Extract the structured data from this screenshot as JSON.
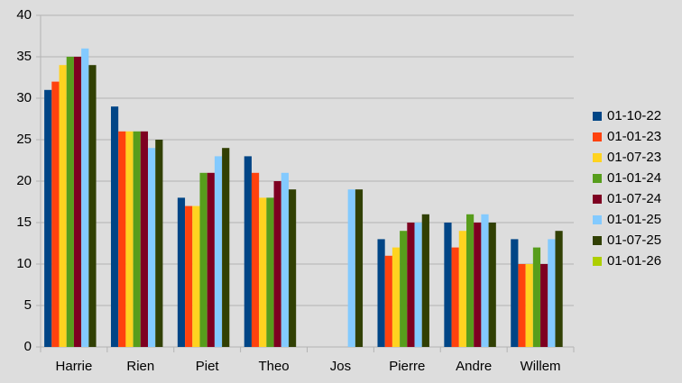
{
  "chart_data": {
    "type": "bar",
    "categories": [
      "Harrie",
      "Rien",
      "Piet",
      "Theo",
      "Jos",
      "Pierre",
      "Andre",
      "Willem"
    ],
    "series": [
      {
        "name": "01-10-22",
        "color": "#004586",
        "values": [
          31,
          29,
          18,
          23,
          null,
          13,
          15,
          13
        ]
      },
      {
        "name": "01-01-23",
        "color": "#ff420e",
        "values": [
          32,
          26,
          17,
          21,
          null,
          11,
          12,
          10
        ]
      },
      {
        "name": "01-07-23",
        "color": "#ffd320",
        "values": [
          34,
          26,
          17,
          18,
          null,
          12,
          14,
          10
        ]
      },
      {
        "name": "01-01-24",
        "color": "#579d1c",
        "values": [
          35,
          26,
          21,
          18,
          null,
          14,
          16,
          12
        ]
      },
      {
        "name": "01-07-24",
        "color": "#7e0021",
        "values": [
          35,
          26,
          21,
          20,
          null,
          15,
          15,
          10
        ]
      },
      {
        "name": "01-01-25",
        "color": "#83caff",
        "values": [
          36,
          24,
          23,
          21,
          19,
          15,
          16,
          13
        ]
      },
      {
        "name": "01-07-25",
        "color": "#314004",
        "values": [
          34,
          25,
          24,
          19,
          19,
          16,
          15,
          14
        ]
      },
      {
        "name": "01-01-26",
        "color": "#aecf00",
        "values": [
          null,
          null,
          null,
          null,
          null,
          null,
          null,
          null
        ]
      }
    ],
    "ylim": [
      0,
      40
    ],
    "yticks": [
      0,
      5,
      10,
      15,
      20,
      25,
      30,
      35,
      40
    ],
    "grid": true,
    "legend": "right"
  }
}
